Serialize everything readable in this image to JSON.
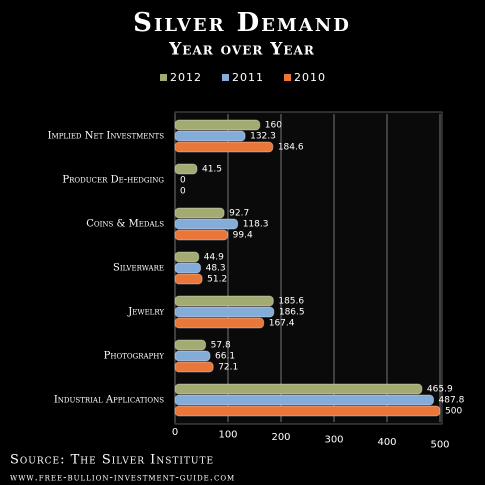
{
  "chart_data": {
    "type": "bar",
    "orientation": "horizontal",
    "title": "Silver Demand",
    "subtitle": "Year over Year",
    "categories": [
      "Implied Net Investments",
      "Producer De-hedging",
      "Coins & Medals",
      "Silverware",
      "Jewelry",
      "Photography",
      "Industrial Applications"
    ],
    "series": [
      {
        "name": "2012",
        "color": "#a3ab72",
        "values": [
          160,
          41.5,
          92.7,
          44.9,
          185.6,
          57.8,
          465.9
        ]
      },
      {
        "name": "2011",
        "color": "#84acd9",
        "values": [
          132.3,
          0,
          118.3,
          48.3,
          186.5,
          66.1,
          487.8
        ]
      },
      {
        "name": "2010",
        "color": "#e9763a",
        "values": [
          184.6,
          0,
          99.4,
          51.2,
          167.4,
          72.1,
          500
        ]
      }
    ],
    "xlim": [
      0,
      500
    ],
    "xticks": [
      0,
      100,
      200,
      300,
      400,
      500
    ],
    "grid": true,
    "source": "Source: The Silver Institute",
    "footer": "www.free-bullion-investment-guide.com"
  }
}
